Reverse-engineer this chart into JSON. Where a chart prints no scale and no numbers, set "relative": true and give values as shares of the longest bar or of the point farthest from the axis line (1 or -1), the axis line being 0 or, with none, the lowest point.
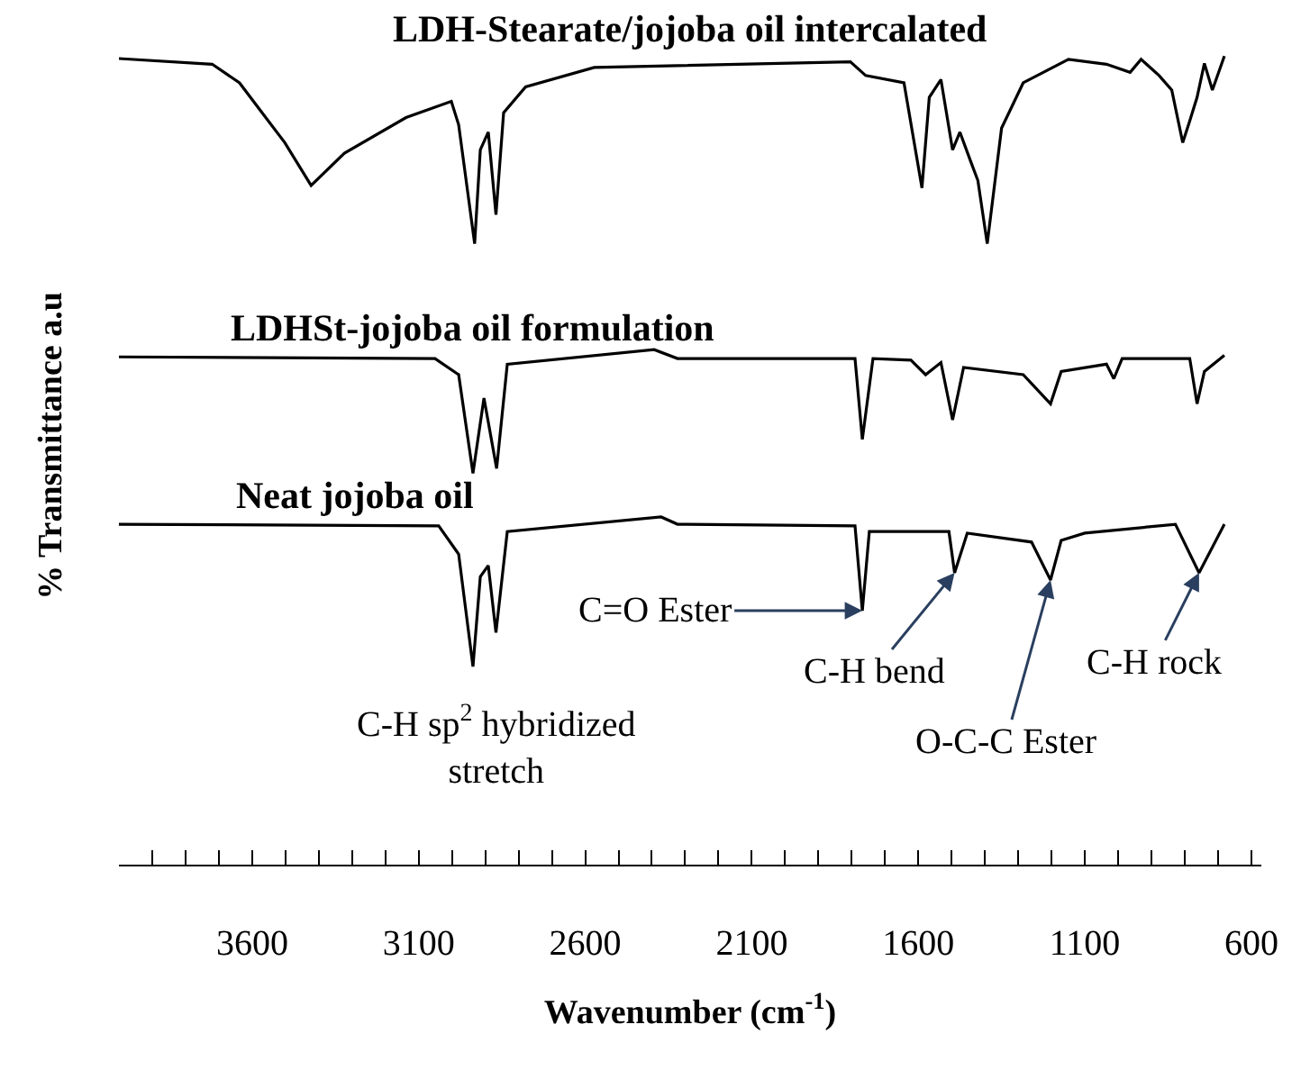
{
  "chart_data": {
    "type": "line",
    "relative": true,
    "xlabel": "Wavenumber (cm$^{-1}$)",
    "ylabel": "% Transmittance a.u",
    "xlim": [
      4000,
      570
    ],
    "xticks": [
      {
        "value": 3900,
        "label": null
      },
      {
        "value": 3800,
        "label": null
      },
      {
        "value": 3700,
        "label": null
      },
      3600,
      {
        "value": 3500,
        "label": null
      },
      {
        "value": 3400,
        "label": null
      },
      {
        "value": 3300,
        "label": null
      },
      {
        "value": 3200,
        "label": null
      },
      3100,
      {
        "value": 3000,
        "label": null
      },
      {
        "value": 2900,
        "label": null
      },
      {
        "value": 2800,
        "label": null
      },
      {
        "value": 2700,
        "label": null
      },
      2600,
      {
        "value": 2500,
        "label": null
      },
      {
        "value": 2400,
        "label": null
      },
      {
        "value": 2300,
        "label": null
      },
      {
        "value": 2200,
        "label": null
      },
      2100,
      {
        "value": 2000,
        "label": null
      },
      {
        "value": 1900,
        "label": null
      },
      {
        "value": 1800,
        "label": null
      },
      {
        "value": 1700,
        "label": null
      },
      1600,
      {
        "value": 1500,
        "label": null
      },
      {
        "value": 1400,
        "label": null
      },
      {
        "value": 1300,
        "label": null
      },
      {
        "value": 1200,
        "label": null
      },
      1100,
      {
        "value": 1000,
        "label": null
      },
      {
        "value": 900,
        "label": null
      },
      {
        "value": 800,
        "label": null
      },
      {
        "value": 700,
        "label": null
      },
      600
    ],
    "legend": false,
    "marker": "none",
    "line_style": "solid",
    "series": [
      {
        "name": "LDH-Stearate/jojoba oil intercalated",
        "color": "#000000",
        "x": [
          4000,
          3720,
          3638,
          3570,
          3502,
          3423,
          3323,
          3138,
          3002,
          2980,
          2932,
          2915,
          2891,
          2868,
          2845,
          2779,
          2573,
          1804,
          1758,
          1643,
          1589,
          1567,
          1532,
          1497,
          1475,
          1442,
          1421,
          1393,
          1350,
          1285,
          1149,
          1035,
          964,
          931,
          877,
          839,
          806,
          785,
          763,
          741,
          717,
          681
        ],
        "values": [
          0.997,
          0.99,
          0.967,
          0.93,
          0.893,
          0.84,
          0.88,
          0.924,
          0.944,
          0.915,
          0.768,
          0.884,
          0.906,
          0.804,
          0.93,
          0.962,
          0.986,
          0.993,
          0.976,
          0.967,
          0.837,
          0.949,
          0.971,
          0.884,
          0.906,
          0.869,
          0.846,
          0.768,
          0.911,
          0.967,
          0.996,
          0.99,
          0.98,
          0.996,
          0.976,
          0.958,
          0.893,
          0.92,
          0.949,
          0.991,
          0.958,
          1.0
        ]
      },
      {
        "name": "LDHSt-jojoba oil formulation",
        "color": "#000000",
        "x": [
          4000,
          3051,
          2980,
          2937,
          2904,
          2866,
          2834,
          2393,
          2323,
          1790,
          1768,
          1736,
          1622,
          1578,
          1532,
          1497,
          1464,
          1285,
          1203,
          1171,
          1035,
          1013,
          988,
          785,
          763,
          741,
          681
        ],
        "values": [
          0.628,
          0.626,
          0.606,
          0.484,
          0.577,
          0.49,
          0.619,
          0.637,
          0.626,
          0.626,
          0.526,
          0.626,
          0.624,
          0.606,
          0.621,
          0.55,
          0.615,
          0.606,
          0.57,
          0.61,
          0.619,
          0.601,
          0.626,
          0.626,
          0.57,
          0.61,
          0.63
        ]
      },
      {
        "name": "Neat jojoba oil",
        "color": "#000000",
        "x": [
          4000,
          3040,
          2980,
          2937,
          2915,
          2891,
          2868,
          2834,
          2372,
          2323,
          1790,
          1768,
          1747,
          1508,
          1491,
          1453,
          1260,
          1203,
          1171,
          1100,
          828,
          757,
          681
        ],
        "values": [
          0.421,
          0.419,
          0.384,
          0.245,
          0.356,
          0.37,
          0.287,
          0.412,
          0.43,
          0.421,
          0.419,
          0.314,
          0.412,
          0.412,
          0.361,
          0.41,
          0.399,
          0.352,
          0.401,
          0.41,
          0.421,
          0.361,
          0.421
        ]
      }
    ],
    "annotations": [
      "C-H sp$^{2}$ hybridized\nstretch",
      {
        "text": "C=O Ester",
        "x": 1768,
        "y": 0.314
      },
      {
        "text": "C-H bend",
        "x": 1491,
        "y": 0.361
      },
      {
        "text": "O-C-C Ester",
        "x": 1203,
        "y": 0.352
      },
      {
        "text": "C-H rock",
        "x": 757,
        "y": 0.361
      }
    ]
  }
}
